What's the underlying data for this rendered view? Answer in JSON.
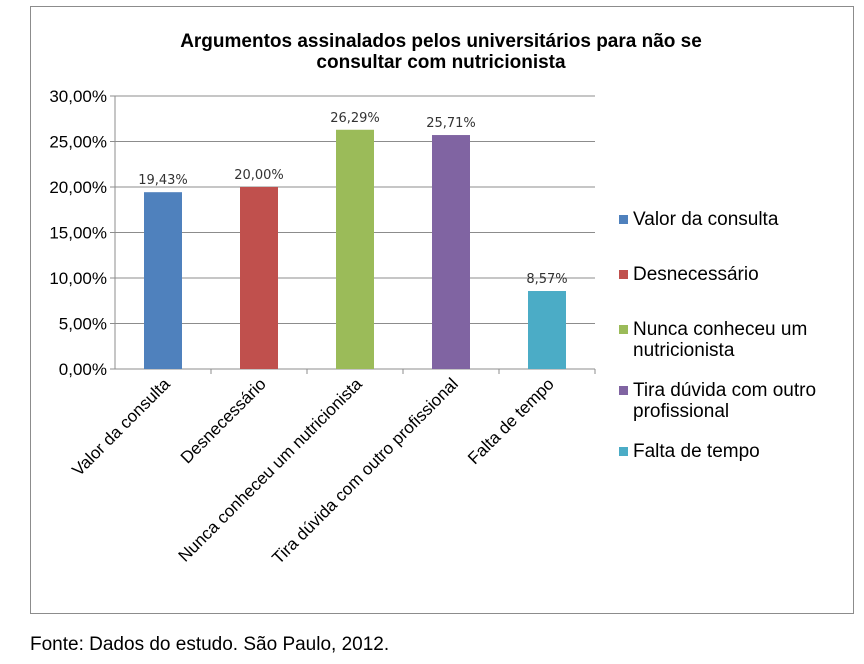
{
  "chart_data": {
    "type": "bar",
    "title": [
      "Argumentos assinalados pelos universitários para não se",
      "consultar com nutricionista"
    ],
    "categories": [
      "Valor da consulta",
      "Desnecessário",
      "Nunca conheceu um nutricionista",
      "Tira dúvida com outro profissional",
      "Falta de tempo"
    ],
    "values": [
      19.43,
      20.0,
      26.29,
      25.71,
      8.57
    ],
    "data_labels": [
      "19,43%",
      "20,00%",
      "26,29%",
      "25,71%",
      "8,57%"
    ],
    "colors": [
      "#4f81bd",
      "#c0504d",
      "#9bbb59",
      "#8064a2",
      "#4bacc6"
    ],
    "ylim": [
      0,
      30
    ],
    "y_ticks": [
      0,
      5,
      10,
      15,
      20,
      25,
      30
    ],
    "y_tick_labels": [
      "0,00%",
      "5,00%",
      "10,00%",
      "15,00%",
      "20,00%",
      "25,00%",
      "30,00%"
    ],
    "grid": true,
    "legend_position": "right",
    "legend": [
      [
        "Valor da consulta"
      ],
      [
        "Desnecessário"
      ],
      [
        "Nunca conheceu um",
        "nutricionista"
      ],
      [
        "Tira dúvida com outro",
        "profissional"
      ],
      [
        "Falta de tempo"
      ]
    ],
    "xlabel": "",
    "ylabel": ""
  },
  "source_note": "Fonte: Dados do estudo. São Paulo, 2012."
}
